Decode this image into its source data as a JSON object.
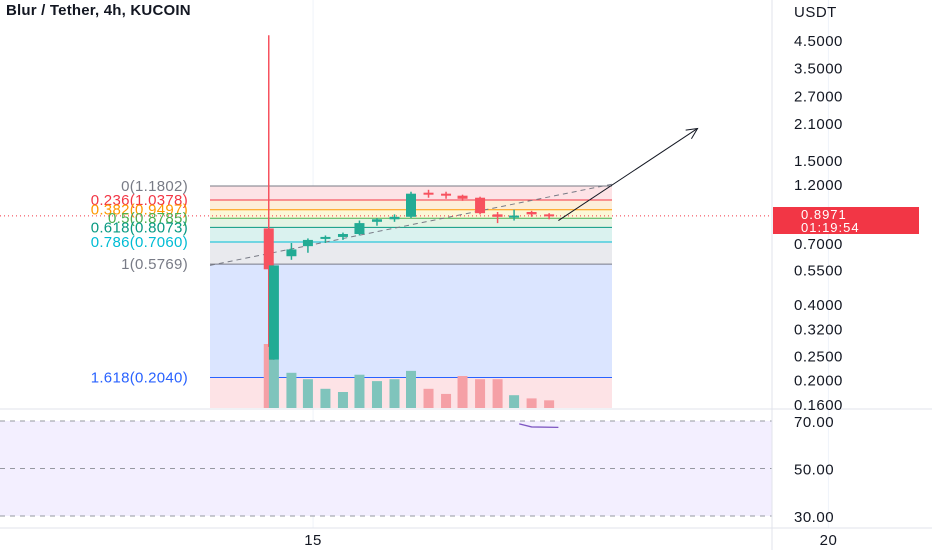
{
  "header": {
    "title": "Blur / Tether, 4h, KUCOIN"
  },
  "price_axis": {
    "currency": "USDT",
    "ticks": [
      {
        "value": 4.5,
        "label": "4.5000"
      },
      {
        "value": 3.5,
        "label": "3.5000"
      },
      {
        "value": 2.7,
        "label": "2.7000"
      },
      {
        "value": 2.1,
        "label": "2.1000"
      },
      {
        "value": 1.5,
        "label": "1.5000"
      },
      {
        "value": 1.2,
        "label": "1.2000"
      },
      {
        "value": 0.7,
        "label": "0.7000"
      },
      {
        "value": 0.55,
        "label": "0.5500"
      },
      {
        "value": 0.4,
        "label": "0.4000"
      },
      {
        "value": 0.32,
        "label": "0.3200"
      },
      {
        "value": 0.25,
        "label": "0.2500"
      },
      {
        "value": 0.2,
        "label": "0.2000"
      },
      {
        "value": 0.16,
        "label": "0.1600"
      }
    ],
    "scale": "log"
  },
  "current_price": {
    "price": "0.8971",
    "countdown": "01:19:54",
    "color": "#f23645"
  },
  "time_axis": {
    "ticks": [
      {
        "day": 15,
        "label": "15"
      },
      {
        "day": 20,
        "label": "20"
      }
    ]
  },
  "rsi_axis": {
    "ticks": [
      {
        "value": 70,
        "label": "70.00"
      },
      {
        "value": 50,
        "label": "50.00"
      },
      {
        "value": 30,
        "label": "30.00"
      }
    ]
  },
  "chart_data": {
    "type": "candlestick",
    "title": "Blur / Tether, 4h, KUCOIN",
    "y_scale": "log",
    "ylim": [
      0.155,
      5.0
    ],
    "y_unit": "USDT",
    "x_unit": "day",
    "xlim": [
      14.0,
      21.0
    ],
    "candles": [
      {
        "x": 14.57,
        "open": 0.8,
        "high": 4.7,
        "low": 0.27,
        "close": 0.55,
        "volume": 1.0
      },
      {
        "x": 14.62,
        "open": 0.24,
        "high": 0.57,
        "low": 0.24,
        "close": 0.57,
        "volume": 0.75
      },
      {
        "x": 14.79,
        "open": 0.62,
        "high": 0.7,
        "low": 0.6,
        "close": 0.66,
        "volume": 0.55
      },
      {
        "x": 14.95,
        "open": 0.68,
        "high": 0.73,
        "low": 0.64,
        "close": 0.72,
        "volume": 0.45
      },
      {
        "x": 15.12,
        "open": 0.73,
        "high": 0.75,
        "low": 0.7,
        "close": 0.74,
        "volume": 0.3
      },
      {
        "x": 15.29,
        "open": 0.74,
        "high": 0.77,
        "low": 0.72,
        "close": 0.76,
        "volume": 0.25
      },
      {
        "x": 15.45,
        "open": 0.76,
        "high": 0.86,
        "low": 0.75,
        "close": 0.84,
        "volume": 0.52
      },
      {
        "x": 15.62,
        "open": 0.85,
        "high": 0.88,
        "low": 0.82,
        "close": 0.87,
        "volume": 0.42
      },
      {
        "x": 15.79,
        "open": 0.87,
        "high": 0.91,
        "low": 0.85,
        "close": 0.89,
        "volume": 0.45
      },
      {
        "x": 15.95,
        "open": 0.89,
        "high": 1.12,
        "low": 0.88,
        "close": 1.1,
        "volume": 0.58
      },
      {
        "x": 16.12,
        "open": 1.11,
        "high": 1.14,
        "low": 1.06,
        "close": 1.1,
        "volume": 0.3
      },
      {
        "x": 16.29,
        "open": 1.1,
        "high": 1.12,
        "low": 1.05,
        "close": 1.08,
        "volume": 0.22
      },
      {
        "x": 16.45,
        "open": 1.08,
        "high": 1.09,
        "low": 1.03,
        "close": 1.05,
        "volume": 0.5
      },
      {
        "x": 16.62,
        "open": 1.06,
        "high": 1.07,
        "low": 0.91,
        "close": 0.92,
        "volume": 0.45
      },
      {
        "x": 16.79,
        "open": 0.91,
        "high": 0.93,
        "low": 0.84,
        "close": 0.89,
        "volume": 0.45
      },
      {
        "x": 16.95,
        "open": 0.89,
        "high": 0.95,
        "low": 0.86,
        "close": 0.9,
        "volume": 0.2
      },
      {
        "x": 17.12,
        "open": 0.93,
        "high": 0.94,
        "low": 0.89,
        "close": 0.91,
        "volume": 0.15
      },
      {
        "x": 17.29,
        "open": 0.91,
        "high": 0.92,
        "low": 0.87,
        "close": 0.8971,
        "volume": 0.12
      }
    ],
    "fibonacci": {
      "levels": [
        {
          "ratio": "0",
          "price": 1.1802,
          "label": "0(1.1802)",
          "color": "#787b86"
        },
        {
          "ratio": "0.236",
          "price": 1.0378,
          "label": "0.236(1.0378)",
          "color": "#f23645"
        },
        {
          "ratio": "0.382",
          "price": 0.9497,
          "label": "0.382(0.9497)",
          "color": "#ff9800"
        },
        {
          "ratio": "0.5",
          "price": 0.8785,
          "label": "0.5(0.8785)",
          "color": "#4caf50"
        },
        {
          "ratio": "0.618",
          "price": 0.8073,
          "label": "0.618(0.8073)",
          "color": "#089981"
        },
        {
          "ratio": "0.786",
          "price": 0.706,
          "label": "0.786(0.7060)",
          "color": "#00bcd4"
        },
        {
          "ratio": "1",
          "price": 0.5769,
          "label": "1(0.5769)",
          "color": "#787b86"
        },
        {
          "ratio": "1.618",
          "price": 0.204,
          "label": "1.618(0.2040)",
          "color": "#2962ff"
        }
      ],
      "extends_to": 0.155,
      "x_start": 14.0,
      "x_end": 17.9
    },
    "trendline_dashed": {
      "from": {
        "x": 14.0,
        "y": 0.57
      },
      "to": {
        "x": 17.9,
        "y": 1.2
      }
    },
    "arrow": {
      "from": {
        "x": 17.38,
        "y": 0.86
      },
      "to": {
        "x": 18.73,
        "y": 2.0
      }
    },
    "current_price_line": 0.8971,
    "rsi": {
      "ylim": [
        28,
        72
      ],
      "points": [
        {
          "x": 17.0,
          "y": 68.8
        },
        {
          "x": 17.12,
          "y": 67.5
        },
        {
          "x": 17.38,
          "y": 67.3
        }
      ]
    }
  },
  "colors": {
    "up": "#22ab94",
    "down": "#f7525f",
    "up_volume": "#7fc4bc",
    "down_volume": "#f5a0a6",
    "rsi_line": "#7e57c2",
    "rsi_band": "#f3efff"
  }
}
